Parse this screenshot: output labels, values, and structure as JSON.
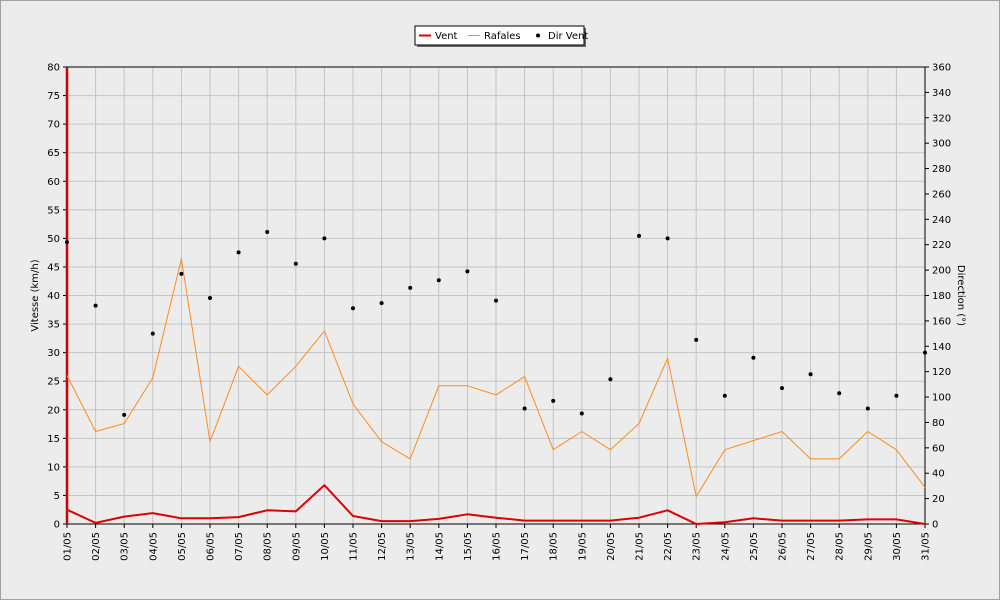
{
  "chart_data": {
    "type": "line",
    "title": "",
    "xlabel": "",
    "ylabel": "Vitesse (km/h)",
    "y2label": "Direction (°)",
    "ylim": [
      0,
      80
    ],
    "y2lim": [
      0,
      360
    ],
    "y_ticks": [
      "0",
      "5",
      "10",
      "15",
      "20",
      "25",
      "30",
      "35",
      "40",
      "45",
      "50",
      "55",
      "60",
      "65",
      "70",
      "75",
      "80"
    ],
    "y2_ticks": [
      "0",
      "20",
      "40",
      "60",
      "80",
      "100",
      "120",
      "140",
      "160",
      "180",
      "200",
      "220",
      "240",
      "260",
      "280",
      "300",
      "320",
      "340",
      "360"
    ],
    "categories": [
      "01/05",
      "02/05",
      "03/05",
      "04/05",
      "05/05",
      "06/05",
      "07/05",
      "08/05",
      "09/05",
      "10/05",
      "11/05",
      "12/05",
      "13/05",
      "14/05",
      "15/05",
      "16/05",
      "17/05",
      "18/05",
      "19/05",
      "20/05",
      "21/05",
      "22/05",
      "23/05",
      "24/05",
      "25/05",
      "26/05",
      "27/05",
      "28/05",
      "29/05",
      "30/05",
      "31/05"
    ],
    "grid": true,
    "legend_position": "top-center",
    "series": [
      {
        "name": "Vent",
        "kind": "line",
        "axis": "left",
        "color": "#dd0000",
        "values": [
          2.5,
          0.2,
          1.3,
          1.9,
          1.0,
          1.0,
          1.2,
          2.4,
          2.2,
          6.8,
          1.4,
          0.5,
          0.5,
          0.9,
          1.7,
          1.1,
          0.6,
          0.6,
          0.6,
          0.6,
          1.1,
          2.4,
          0.0,
          0.3,
          1.0,
          0.6,
          0.6,
          0.6,
          0.8,
          0.8,
          0.0
        ]
      },
      {
        "name": "Rafales",
        "kind": "line",
        "axis": "left",
        "color": "#ff8c1a",
        "values": [
          26.0,
          16.2,
          17.6,
          25.6,
          46.4,
          14.4,
          27.6,
          22.6,
          27.6,
          33.8,
          21.0,
          14.4,
          11.4,
          24.2,
          24.2,
          22.6,
          25.8,
          13.0,
          16.2,
          13.0,
          17.6,
          29.0,
          4.8,
          13.0,
          14.6,
          16.2,
          11.4,
          11.4,
          16.2,
          13.0,
          6.4
        ]
      },
      {
        "name": "Dir Vent",
        "kind": "scatter",
        "axis": "right",
        "color": "#000000",
        "values": [
          222,
          172,
          86,
          150,
          197,
          178,
          214,
          230,
          205,
          225,
          170,
          174,
          186,
          192,
          199,
          176,
          91,
          97,
          87,
          114,
          227,
          225,
          145,
          101,
          131,
          107,
          118,
          103,
          91,
          101,
          135
        ]
      }
    ]
  }
}
